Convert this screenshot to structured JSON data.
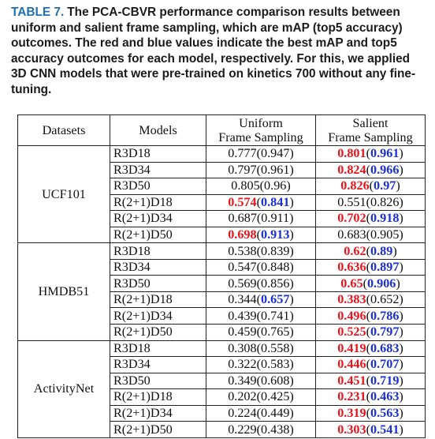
{
  "caption": {
    "label": "TABLE 7.",
    "text": "The PCA-CBVR performance comparison results between uniform and salient frame sampling, which are mAP (top5 accuracy) outcomes. The red and blue values indicate the best mAP and top5 accuracy outcomes for each model, respectively. For this, we applied 3D CNN models that were pre-trained on kinetics 700 without any fine-tuning."
  },
  "table": {
    "headers": {
      "datasets": "Datasets",
      "models": "Models",
      "uniform": [
        "Uniform",
        "Frame Sampling"
      ],
      "salient": [
        "Salient",
        "Frame Sampling"
      ]
    },
    "colors": {
      "best_map": "#e8141b",
      "best_top5": "#1a2fd6"
    },
    "groups": [
      {
        "dataset": "UCF101",
        "rows": [
          {
            "model": "R3D18",
            "uniform": {
              "map": "0.777",
              "top5": "0.947"
            },
            "salient": {
              "map": "0.801",
              "top5": "0.961"
            },
            "best_map": "salient",
            "best_top5": "salient"
          },
          {
            "model": "R3D34",
            "uniform": {
              "map": "0.797",
              "top5": "0.961"
            },
            "salient": {
              "map": "0.824",
              "top5": "0.966"
            },
            "best_map": "salient",
            "best_top5": "salient"
          },
          {
            "model": "R3D50",
            "uniform": {
              "map": "0.805",
              "top5": "0.96"
            },
            "salient": {
              "map": "0.826",
              "top5": "0.97"
            },
            "best_map": "salient",
            "best_top5": "salient"
          },
          {
            "model": "R(2+1)D18",
            "uniform": {
              "map": "0.574",
              "top5": "0.841"
            },
            "salient": {
              "map": "0.551",
              "top5": "0.826"
            },
            "best_map": "uniform",
            "best_top5": "uniform"
          },
          {
            "model": "R(2+1)D34",
            "uniform": {
              "map": "0.687",
              "top5": "0.911"
            },
            "salient": {
              "map": "0.702",
              "top5": "0.918"
            },
            "best_map": "salient",
            "best_top5": "salient"
          },
          {
            "model": "R(2+1)D50",
            "uniform": {
              "map": "0.698",
              "top5": "0.913"
            },
            "salient": {
              "map": "0.683",
              "top5": "0.905"
            },
            "best_map": "uniform",
            "best_top5": "uniform"
          }
        ]
      },
      {
        "dataset": "HMDB51",
        "rows": [
          {
            "model": "R3D18",
            "uniform": {
              "map": "0.538",
              "top5": "0.839"
            },
            "salient": {
              "map": "0.62",
              "top5": "0.89"
            },
            "best_map": "salient",
            "best_top5": "salient"
          },
          {
            "model": "R3D34",
            "uniform": {
              "map": "0.547",
              "top5": "0.848"
            },
            "salient": {
              "map": "0.636",
              "top5": "0.897"
            },
            "best_map": "salient",
            "best_top5": "salient"
          },
          {
            "model": "R3D50",
            "uniform": {
              "map": "0.569",
              "top5": "0.856"
            },
            "salient": {
              "map": "0.65",
              "top5": "0.906"
            },
            "best_map": "salient",
            "best_top5": "salient"
          },
          {
            "model": "R(2+1)D18",
            "uniform": {
              "map": "0.344",
              "top5": "0.657"
            },
            "salient": {
              "map": "0.383",
              "top5": "0.652"
            },
            "best_map": "salient",
            "best_top5": "uniform"
          },
          {
            "model": "R(2+1)D34",
            "uniform": {
              "map": "0.439",
              "top5": "0.741"
            },
            "salient": {
              "map": "0.496",
              "top5": "0.786"
            },
            "best_map": "salient",
            "best_top5": "salient"
          },
          {
            "model": "R(2+1)D50",
            "uniform": {
              "map": "0.459",
              "top5": "0.765"
            },
            "salient": {
              "map": "0.525",
              "top5": "0.797"
            },
            "best_map": "salient",
            "best_top5": "salient"
          }
        ]
      },
      {
        "dataset": "ActivityNet",
        "rows": [
          {
            "model": "R3D18",
            "uniform": {
              "map": "0.308",
              "top5": "0.558"
            },
            "salient": {
              "map": "0.419",
              "top5": "0.683"
            },
            "best_map": "salient",
            "best_top5": "salient"
          },
          {
            "model": "R3D34",
            "uniform": {
              "map": "0.322",
              "top5": "0.583"
            },
            "salient": {
              "map": "0.446",
              "top5": "0.707"
            },
            "best_map": "salient",
            "best_top5": "salient"
          },
          {
            "model": "R3D50",
            "uniform": {
              "map": "0.349",
              "top5": "0.608"
            },
            "salient": {
              "map": "0.451",
              "top5": "0.719"
            },
            "best_map": "salient",
            "best_top5": "salient"
          },
          {
            "model": "R(2+1)D18",
            "uniform": {
              "map": "0.202",
              "top5": "0.425"
            },
            "salient": {
              "map": "0.231",
              "top5": "0.463"
            },
            "best_map": "salient",
            "best_top5": "salient"
          },
          {
            "model": "R(2+1)D34",
            "uniform": {
              "map": "0.224",
              "top5": "0.449"
            },
            "salient": {
              "map": "0.319",
              "top5": "0.563"
            },
            "best_map": "salient",
            "best_top5": "salient"
          },
          {
            "model": "R(2+1)D50",
            "uniform": {
              "map": "0.229",
              "top5": "0.438"
            },
            "salient": {
              "map": "0.303",
              "top5": "0.541"
            },
            "best_map": "salient",
            "best_top5": "salient"
          }
        ]
      }
    ]
  }
}
